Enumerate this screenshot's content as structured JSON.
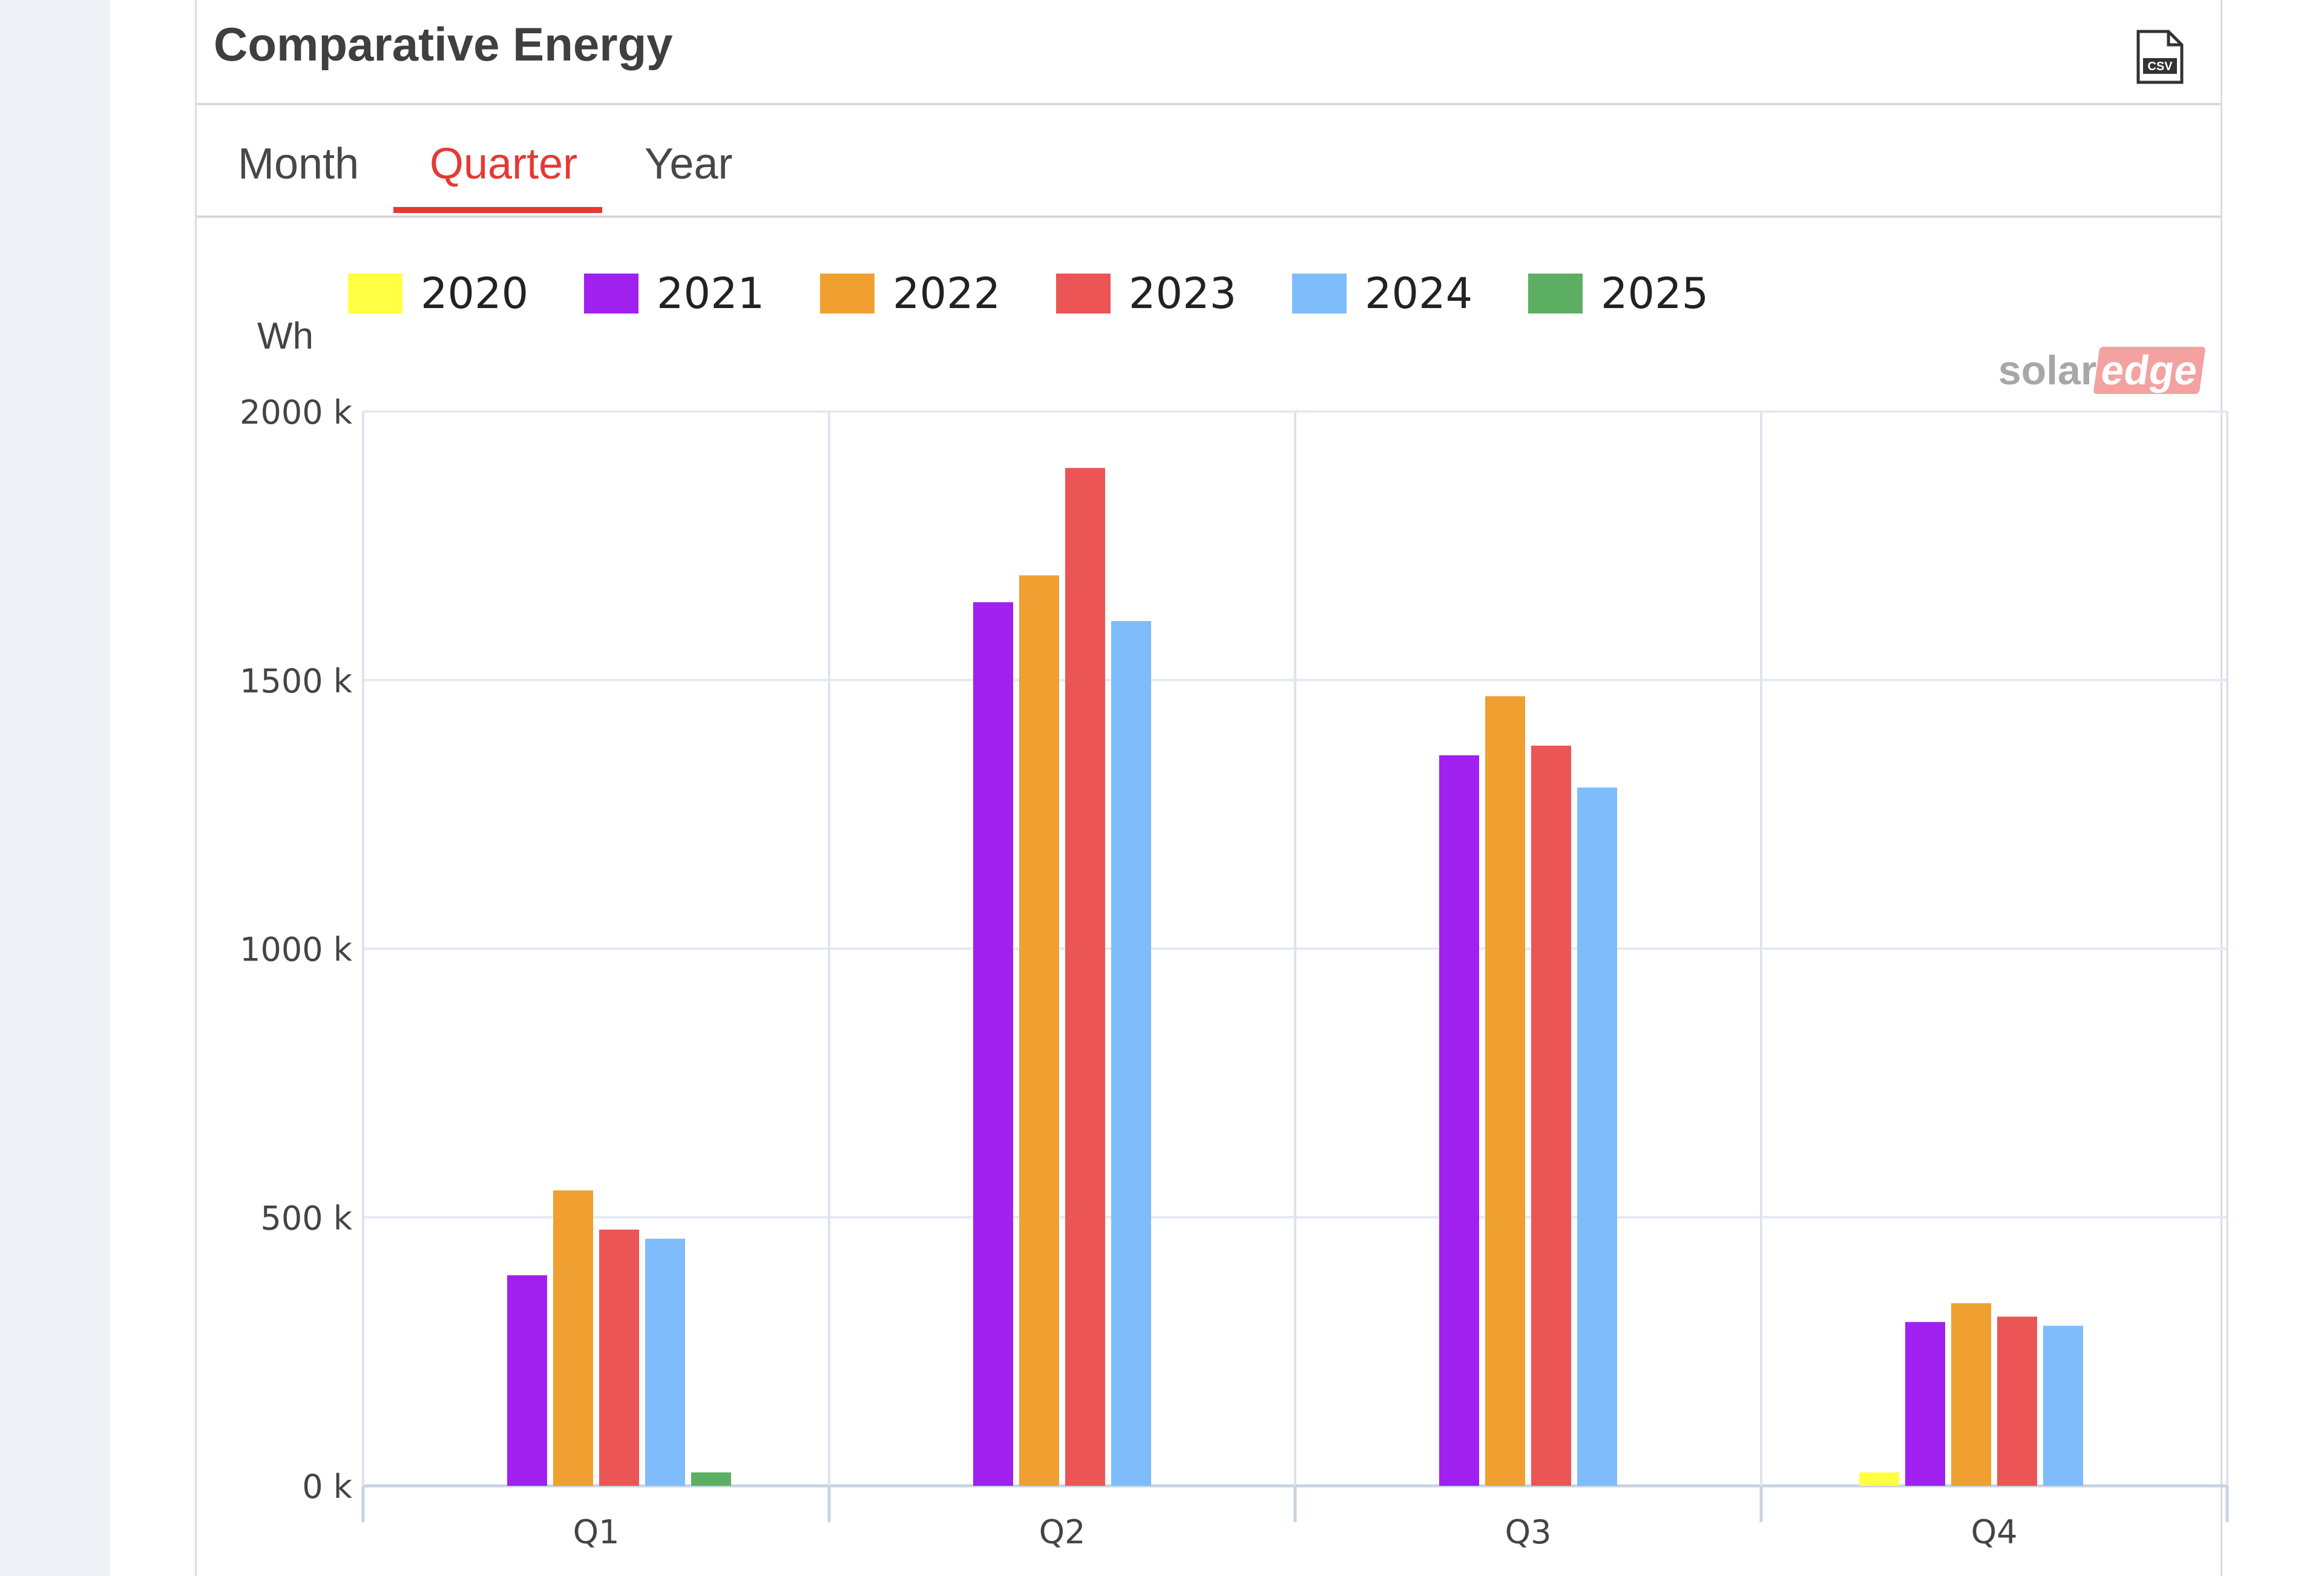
{
  "panel": {
    "title": "Comparative Energy",
    "csv_icon_text": "CSV"
  },
  "tabs": [
    {
      "label": "Month",
      "active": false
    },
    {
      "label": "Quarter",
      "active": true
    },
    {
      "label": "Year",
      "active": false
    }
  ],
  "logo": {
    "part1": "solar",
    "part2": "edge"
  },
  "colors": {
    "accent": "#e53935"
  },
  "chart_data": {
    "type": "bar",
    "title": "",
    "xlabel": "",
    "ylabel": "Wh",
    "ylim": [
      0,
      2000
    ],
    "y_tick_labels": [
      "0 k",
      "500 k",
      "1000 k",
      "1500 k",
      "2000 k"
    ],
    "y_tick_values": [
      0,
      500,
      1000,
      1500,
      2000
    ],
    "categories": [
      "Q1",
      "Q2",
      "Q3",
      "Q4"
    ],
    "legend_position": "top",
    "grid": true,
    "series": [
      {
        "name": "2020",
        "color": "#ffff44",
        "values": [
          0,
          0,
          0,
          25
        ]
      },
      {
        "name": "2021",
        "color": "#a020f0",
        "values": [
          392,
          1645,
          1360,
          305
        ]
      },
      {
        "name": "2022",
        "color": "#f0a030",
        "values": [
          550,
          1695,
          1470,
          340
        ]
      },
      {
        "name": "2023",
        "color": "#ec5555",
        "values": [
          477,
          1895,
          1378,
          315
        ]
      },
      {
        "name": "2024",
        "color": "#7fbcfb",
        "values": [
          460,
          1610,
          1300,
          298
        ]
      },
      {
        "name": "2025",
        "color": "#5caf63",
        "values": [
          25,
          0,
          0,
          0
        ]
      }
    ]
  }
}
